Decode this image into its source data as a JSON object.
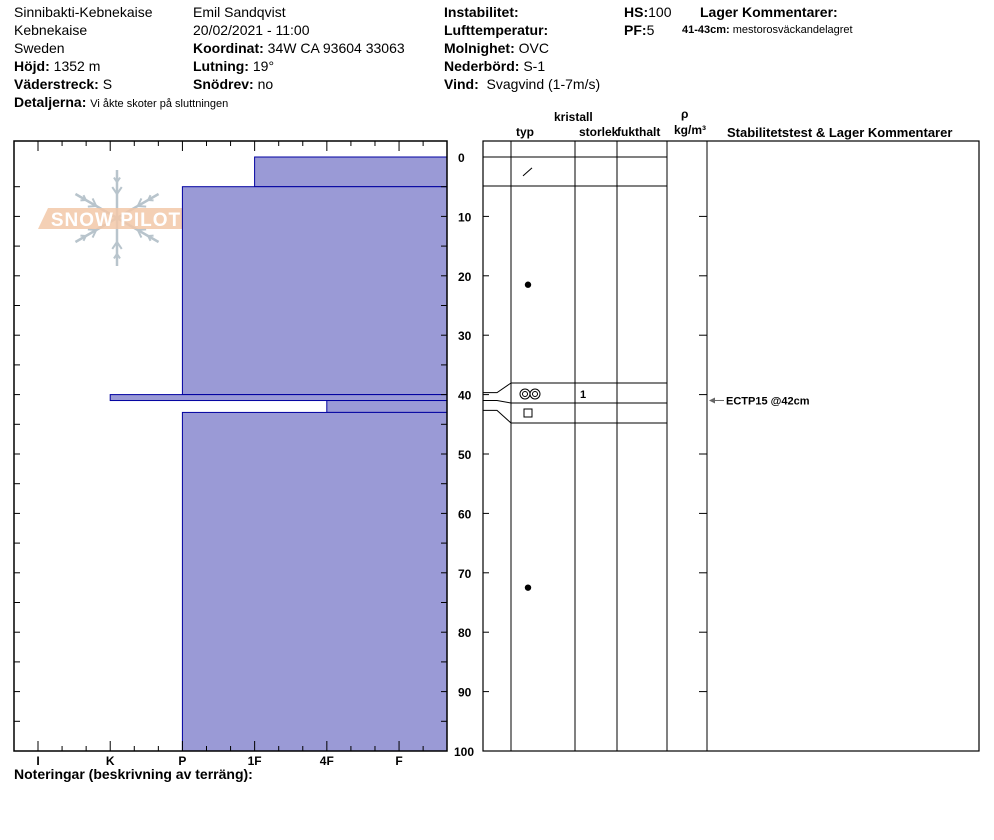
{
  "header": {
    "location": "Sinnibakti-Kebnekaise",
    "region": "Kebnekaise",
    "country": "Sweden",
    "elevation_label": "Höjd:",
    "elevation": "1352 m",
    "aspect_label": "Väderstreck:",
    "aspect": "S",
    "details_label": "Detaljerna:",
    "details": "Vi åkte skoter på sluttningen",
    "observer": "Emil Sandqvist",
    "datetime": "20/02/2021 - 11:00",
    "coord_label": "Koordinat:",
    "coord": "34W CA 93604 33063",
    "slope_label": "Lutning:",
    "slope": "19°",
    "drift_label": "Snödrev:",
    "drift": "no",
    "instability_label": "Instabilitet:",
    "airtemp_label": "Lufttemperatur:",
    "sky_label": "Molnighet:",
    "sky": "OVC",
    "precip_label": "Nederbörd:",
    "precip": "S-1",
    "wind_label": "Vind:",
    "wind": "Svagvind (1-7m/s)",
    "hs_label": "HS:",
    "hs": "100",
    "pf_label": "PF:",
    "pf": "5",
    "layer_comments_label": "Lager Kommentarer:",
    "layer_comment_range": "41-43cm:",
    "layer_comment": "mestorosväckandelagret"
  },
  "table_headers": {
    "crystal": "kristall",
    "type": "typ",
    "size": "storlek",
    "moisture": "fukthalt",
    "rho": "ρ",
    "density_unit": "kg/m³",
    "stability": "Stabilitetstest & Lager Kommentarer"
  },
  "notes_label": "Noteringar (beskrivning av terräng):",
  "logo_text": "SNOW PILOT",
  "colors": {
    "fill": "#9a9ad6",
    "stroke": "#0000a0",
    "logo": "#f2c8a8",
    "flake": "#b8c4cc"
  },
  "chart_data": {
    "type": "bar",
    "orientation": "horizontal-profile",
    "hardness_labels": [
      "I",
      "K",
      "P",
      "1F",
      "4F",
      "F"
    ],
    "depth_ticks": [
      0,
      10,
      20,
      30,
      40,
      50,
      60,
      70,
      80,
      90,
      100
    ],
    "ylim": [
      0,
      100
    ],
    "layers": [
      {
        "top": 0,
        "bottom": 5,
        "hardness": "1F"
      },
      {
        "top": 5,
        "bottom": 40,
        "hardness": "P"
      },
      {
        "top": 40,
        "bottom": 41,
        "hardness": "K"
      },
      {
        "top": 41,
        "bottom": 43,
        "hardness": "4F"
      },
      {
        "top": 43,
        "bottom": 100,
        "hardness": "P"
      }
    ],
    "grain_symbols": [
      {
        "depth": 2.5,
        "symbol": "precipitation-particles-icon",
        "glyph": "⁄"
      },
      {
        "depth": 21.5,
        "symbol": "rounded-grains-icon",
        "glyph": "●"
      },
      {
        "depth": 40.5,
        "symbol": "melt-forms-icon",
        "glyph": "◎◎",
        "size": "1"
      },
      {
        "depth": 42,
        "symbol": "faceted-crystals-icon",
        "glyph": "□"
      },
      {
        "depth": 72.5,
        "symbol": "rounded-grains-icon",
        "glyph": "●"
      }
    ],
    "stability_tests": [
      {
        "depth": 42,
        "label": "ECTP15 @42cm"
      }
    ]
  }
}
